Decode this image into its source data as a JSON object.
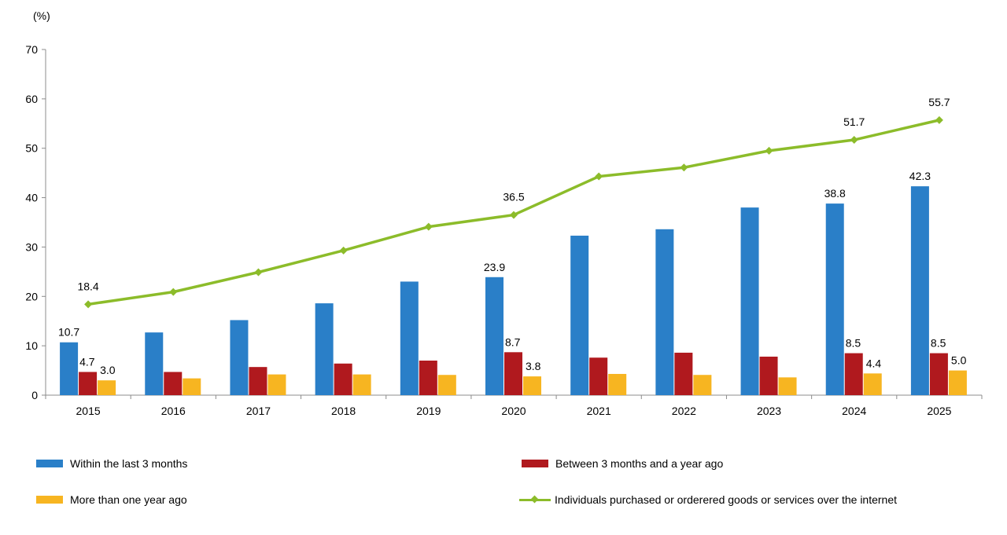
{
  "chart_data": {
    "type": "bar",
    "unit_label": "(%)",
    "categories": [
      "2015",
      "2016",
      "2017",
      "2018",
      "2019",
      "2020",
      "2021",
      "2022",
      "2023",
      "2024",
      "2025"
    ],
    "ylim": [
      0,
      70
    ],
    "yticks": [
      0,
      10,
      20,
      30,
      40,
      50,
      60,
      70
    ],
    "grid": false,
    "legend_position": "bottom",
    "series": [
      {
        "name": "Within the last 3 months",
        "kind": "bar",
        "color": "#2a7fc8",
        "values": [
          10.7,
          12.7,
          15.2,
          18.6,
          23.0,
          23.9,
          32.3,
          33.6,
          38.0,
          38.8,
          42.3
        ],
        "labels": [
          "10.7",
          "",
          "",
          "",
          "",
          "23.9",
          "",
          "",
          "",
          "38.8",
          "42.3"
        ]
      },
      {
        "name": "Between 3 months and a year ago",
        "kind": "bar",
        "color": "#b0191e",
        "values": [
          4.7,
          4.7,
          5.7,
          6.4,
          7.0,
          8.7,
          7.6,
          8.6,
          7.8,
          8.5,
          8.5
        ],
        "labels": [
          "4.7",
          "",
          "",
          "",
          "",
          "8.7",
          "",
          "",
          "",
          "8.5",
          "8.5"
        ]
      },
      {
        "name": "More than one year ago",
        "kind": "bar",
        "color": "#f7b521",
        "values": [
          3.0,
          3.4,
          4.2,
          4.2,
          4.1,
          3.8,
          4.3,
          4.1,
          3.6,
          4.4,
          5.0
        ],
        "labels": [
          "3.0",
          "",
          "",
          "",
          "",
          "3.8",
          "",
          "",
          "",
          "4.4",
          "5.0"
        ]
      },
      {
        "name": "Individuals purchased or orderered goods or services over the internet",
        "kind": "line",
        "color": "#8cbc2a",
        "values": [
          18.4,
          20.9,
          24.9,
          29.3,
          34.1,
          36.5,
          44.3,
          46.1,
          49.5,
          51.7,
          55.7
        ],
        "labels": [
          "18.4",
          "",
          "",
          "",
          "",
          "36.5",
          "",
          "",
          "",
          "51.7",
          "55.7"
        ]
      }
    ]
  }
}
